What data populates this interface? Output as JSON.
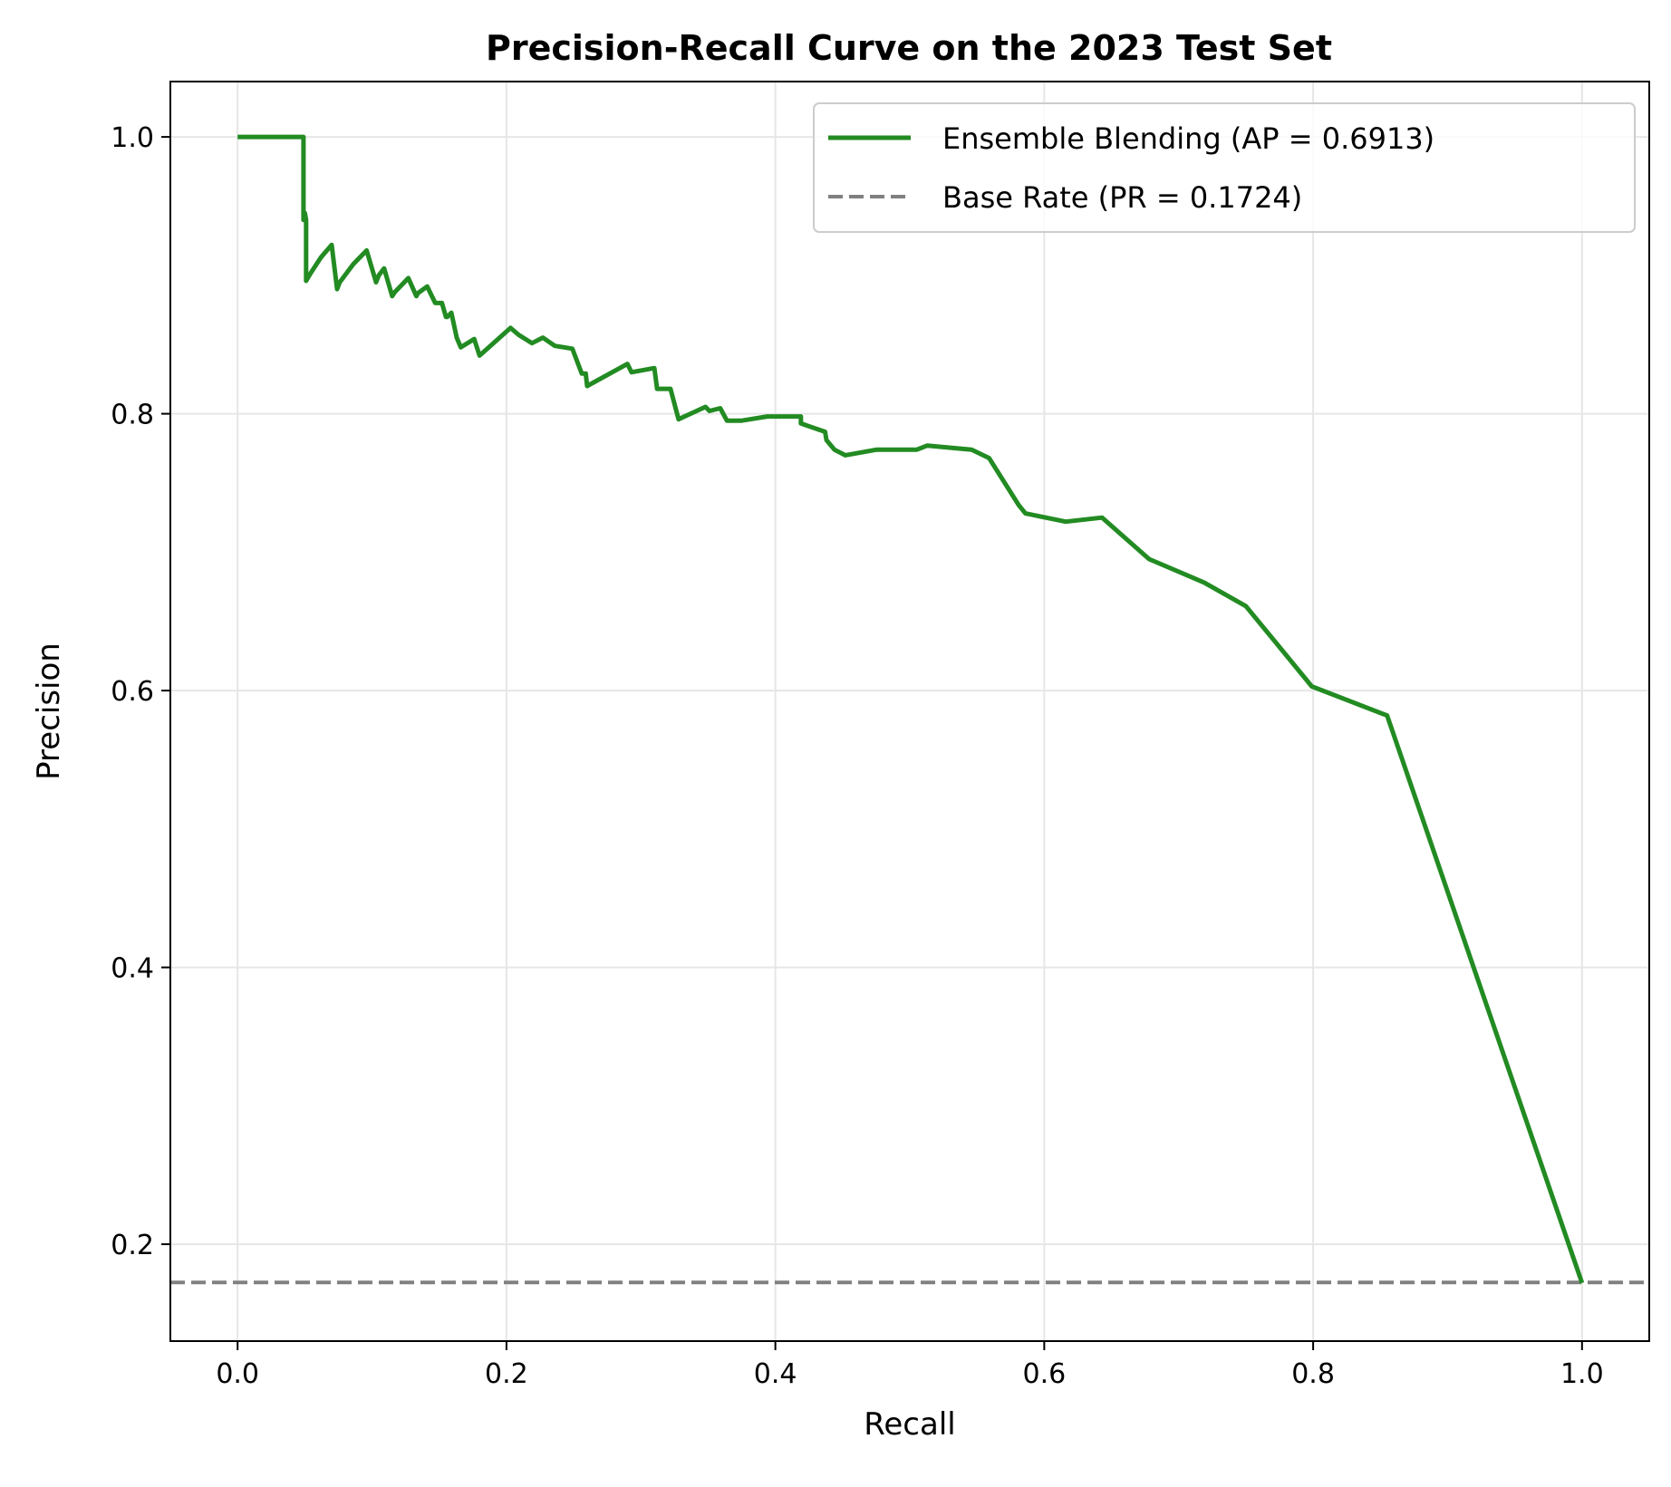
{
  "chart_data": {
    "type": "line",
    "title": "Precision-Recall Curve on the 2023 Test Set",
    "xlabel": "Recall",
    "ylabel": "Precision",
    "xlim": [
      -0.05,
      1.05
    ],
    "ylim": [
      0.13,
      1.04
    ],
    "grid": true,
    "legend_position": "top-right",
    "xticks": [
      {
        "value": 0.0,
        "label": "0.0"
      },
      {
        "value": 0.2,
        "label": "0.2"
      },
      {
        "value": 0.4,
        "label": "0.4"
      },
      {
        "value": 0.6,
        "label": "0.6"
      },
      {
        "value": 0.8,
        "label": "0.8"
      },
      {
        "value": 1.0,
        "label": "1.0"
      }
    ],
    "yticks": [
      {
        "value": 0.2,
        "label": "0.2"
      },
      {
        "value": 0.4,
        "label": "0.4"
      },
      {
        "value": 0.6,
        "label": "0.6"
      },
      {
        "value": 0.8,
        "label": "0.8"
      },
      {
        "value": 1.0,
        "label": "1.0"
      }
    ],
    "series": [
      {
        "name": "Ensemble Blending (AP = 0.6913)",
        "color": "#228b22",
        "style": "solid",
        "x": [
          0.0,
          0.049,
          0.049,
          0.05,
          0.051,
          0.051,
          0.054,
          0.062,
          0.07,
          0.074,
          0.076,
          0.086,
          0.096,
          0.103,
          0.105,
          0.109,
          0.115,
          0.117,
          0.127,
          0.133,
          0.134,
          0.141,
          0.147,
          0.152,
          0.155,
          0.156,
          0.159,
          0.163,
          0.163,
          0.166,
          0.176,
          0.18,
          0.203,
          0.209,
          0.219,
          0.227,
          0.236,
          0.249,
          0.256,
          0.259,
          0.26,
          0.29,
          0.293,
          0.31,
          0.312,
          0.322,
          0.328,
          0.348,
          0.351,
          0.359,
          0.364,
          0.375,
          0.394,
          0.419,
          0.419,
          0.437,
          0.438,
          0.444,
          0.452,
          0.475,
          0.505,
          0.513,
          0.546,
          0.559,
          0.581,
          0.586,
          0.616,
          0.643,
          0.678,
          0.719,
          0.75,
          0.799,
          0.855,
          1.0
        ],
        "y": [
          1.0,
          1.0,
          0.94,
          0.945,
          0.94,
          0.896,
          0.901,
          0.913,
          0.922,
          0.89,
          0.895,
          0.908,
          0.918,
          0.895,
          0.9,
          0.905,
          0.885,
          0.888,
          0.898,
          0.885,
          0.887,
          0.892,
          0.88,
          0.88,
          0.87,
          0.87,
          0.873,
          0.855,
          0.855,
          0.848,
          0.854,
          0.842,
          0.862,
          0.857,
          0.851,
          0.855,
          0.849,
          0.847,
          0.829,
          0.829,
          0.82,
          0.836,
          0.83,
          0.833,
          0.818,
          0.818,
          0.796,
          0.805,
          0.802,
          0.804,
          0.795,
          0.795,
          0.798,
          0.798,
          0.793,
          0.787,
          0.781,
          0.774,
          0.77,
          0.774,
          0.774,
          0.777,
          0.774,
          0.768,
          0.734,
          0.728,
          0.722,
          0.725,
          0.695,
          0.678,
          0.661,
          0.603,
          0.582,
          0.172
        ]
      },
      {
        "name": "Base Rate (PR = 0.1724)",
        "color": "#808080",
        "style": "dashed",
        "y_constant": 0.1724
      }
    ]
  }
}
